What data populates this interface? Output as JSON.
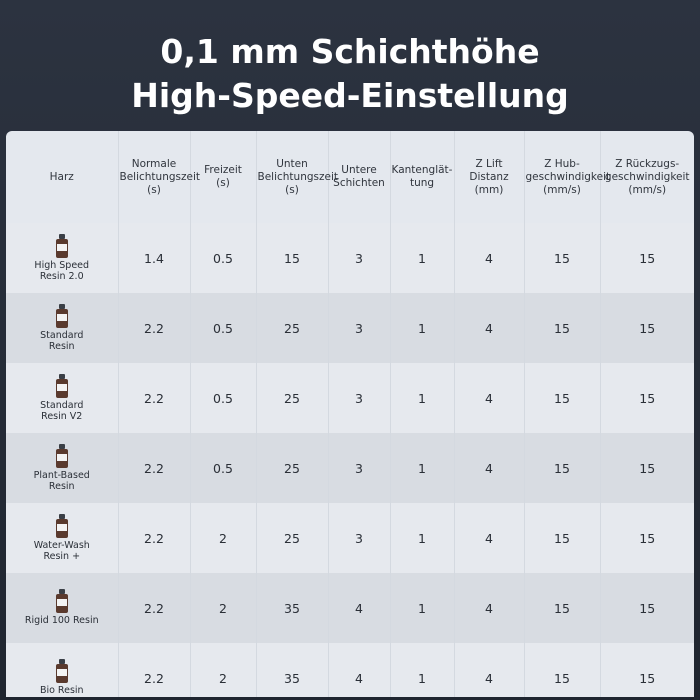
{
  "title": {
    "line1": "0,1 mm Schichthöhe",
    "line2": "High-Speed-Einstellung"
  },
  "table": {
    "headers": [
      [
        "Harz"
      ],
      [
        "Normale",
        "Belichtungszeit",
        "(s)"
      ],
      [
        "Freizeit",
        "(s)"
      ],
      [
        "Unten",
        "Belichtungszeit",
        "(s)"
      ],
      [
        "Untere",
        "Schichten"
      ],
      [
        "Kantenglät-",
        "tung"
      ],
      [
        "Z Lift",
        "Distanz",
        "(mm)"
      ],
      [
        "Z Hub-",
        "geschwindigkeit",
        "(mm/s)"
      ],
      [
        "Z Rückzugs-",
        "geschwindigkeit",
        "(mm/s)"
      ]
    ],
    "rows": [
      {
        "resin": [
          "High Speed",
          "Resin 2.0"
        ],
        "values": [
          "1.4",
          "0.5",
          "15",
          "3",
          "1",
          "4",
          "15",
          "15"
        ]
      },
      {
        "resin": [
          "Standard",
          "Resin"
        ],
        "values": [
          "2.2",
          "0.5",
          "25",
          "3",
          "1",
          "4",
          "15",
          "15"
        ]
      },
      {
        "resin": [
          "Standard",
          "Resin V2"
        ],
        "values": [
          "2.2",
          "0.5",
          "25",
          "3",
          "1",
          "4",
          "15",
          "15"
        ]
      },
      {
        "resin": [
          "Plant-Based",
          "Resin"
        ],
        "values": [
          "2.2",
          "0.5",
          "25",
          "3",
          "1",
          "4",
          "15",
          "15"
        ]
      },
      {
        "resin": [
          "Water-Wash",
          "Resin +"
        ],
        "values": [
          "2.2",
          "2",
          "25",
          "3",
          "1",
          "4",
          "15",
          "15"
        ]
      },
      {
        "resin": [
          "Rigid 100 Resin"
        ],
        "values": [
          "2.2",
          "2",
          "35",
          "4",
          "1",
          "4",
          "15",
          "15"
        ]
      },
      {
        "resin": [
          "Bio Resin"
        ],
        "values": [
          "2.2",
          "2",
          "35",
          "4",
          "1",
          "4",
          "15",
          "15"
        ]
      }
    ],
    "icon": "resin-bottle-icon"
  }
}
